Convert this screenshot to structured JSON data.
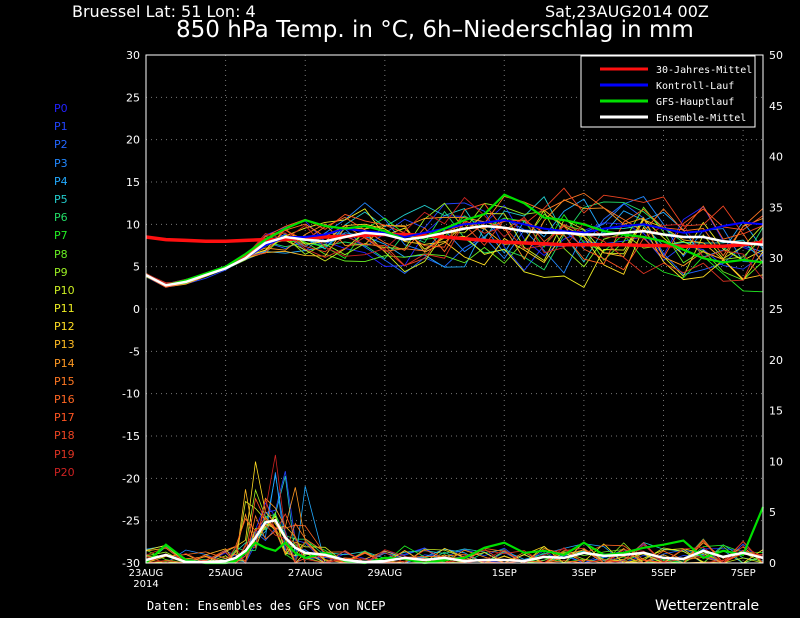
{
  "header": {
    "location": "Bruessel  Lat: 51 Lon: 4",
    "run": "Sat,23AUG2014 00Z",
    "title": "850 hPa Temp. in °C, 6h–Niederschlag in mm"
  },
  "footer": {
    "credit": "Daten: Ensembles des GFS von NCEP",
    "brand": "Wetterzentrale"
  },
  "members": [
    "P0",
    "P1",
    "P2",
    "P3",
    "P4",
    "P5",
    "P6",
    "P7",
    "P8",
    "P9",
    "P10",
    "P11",
    "P12",
    "P13",
    "P14",
    "P15",
    "P16",
    "P17",
    "P18",
    "P19",
    "P20"
  ],
  "member_colors": [
    "#2222ff",
    "#2244ff",
    "#2266ff",
    "#2288ff",
    "#22aaff",
    "#22cccc",
    "#22dd66",
    "#22ee22",
    "#66ee22",
    "#99ee22",
    "#ccee22",
    "#eeee22",
    "#ffdd22",
    "#ffbb22",
    "#ff9922",
    "#ff7722",
    "#ff6622",
    "#ff5522",
    "#ee4422",
    "#dd3322",
    "#cc2222"
  ],
  "colors": {
    "clim": "#ff1010",
    "control": "#0000ff",
    "gfs": "#00e000",
    "mean": "#ffffff"
  },
  "chart_data": {
    "type": "line",
    "left_axis": {
      "min": -30,
      "max": 30,
      "ticks": [
        30,
        25,
        20,
        15,
        10,
        5,
        0,
        -5,
        -10,
        -15,
        -20,
        -25,
        -30
      ]
    },
    "right_axis": {
      "min": 0,
      "max": 50,
      "ticks": [
        50,
        45,
        40,
        35,
        30,
        25,
        20,
        15,
        10,
        5,
        0
      ]
    },
    "x_labels": [
      "23AUG",
      "25AUG",
      "27AUG",
      "29AUG",
      "1SEP",
      "3SEP",
      "5SEP",
      "7SEP"
    ],
    "x_label_days": [
      0,
      2,
      4,
      6,
      9,
      11,
      13,
      15
    ],
    "x_sublabel": "2014",
    "x_range_days": [
      0,
      15.5
    ],
    "grid": true,
    "legend_position": "top-right",
    "legend": [
      "30-Jahres-Mittel",
      "Kontroll-Lauf",
      "GFS-Hauptlauf",
      "Ensemble-Mittel"
    ],
    "temp_days": [
      0,
      0.5,
      1,
      1.5,
      2,
      2.5,
      3,
      3.5,
      4,
      4.5,
      5,
      5.5,
      6,
      6.5,
      7,
      7.5,
      8,
      8.5,
      9,
      9.5,
      10,
      10.5,
      11,
      11.5,
      12,
      12.5,
      13,
      13.5,
      14,
      14.5,
      15,
      15.5
    ],
    "series": [
      {
        "name": "30-Jahres-Mittel",
        "unit": "°C",
        "values": [
          8.5,
          8.2,
          8.1,
          8.0,
          8.0,
          8.1,
          8.2,
          8.2,
          8.4,
          8.5,
          8.6,
          8.7,
          8.8,
          8.8,
          8.7,
          8.5,
          8.3,
          8.1,
          7.9,
          7.8,
          7.7,
          7.6,
          7.6,
          7.6,
          7.6,
          7.5,
          7.5,
          7.4,
          7.4,
          7.4,
          7.6,
          7.9
        ]
      },
      {
        "name": "Ensemble-Mittel",
        "unit": "°C",
        "values": [
          4.0,
          2.8,
          3.2,
          4.0,
          4.8,
          6.0,
          7.8,
          8.5,
          8.2,
          8.0,
          8.5,
          9.0,
          8.8,
          8.2,
          8.5,
          9.0,
          9.5,
          9.8,
          9.6,
          9.2,
          9.0,
          9.0,
          8.8,
          8.8,
          9.0,
          9.2,
          8.8,
          8.5,
          8.5,
          8.0,
          7.8,
          7.6
        ]
      },
      {
        "name": "GFS-Hauptlauf",
        "unit": "°C",
        "values": [
          4.0,
          2.8,
          3.4,
          4.2,
          5.0,
          6.5,
          8.2,
          9.5,
          10.5,
          9.8,
          9.5,
          9.8,
          9.2,
          8.2,
          8.5,
          9.5,
          10.5,
          11.2,
          13.5,
          12.5,
          10.8,
          10.5,
          10.0,
          9.2,
          8.8,
          8.5,
          8.0,
          7.0,
          6.0,
          5.5,
          5.8,
          5.5
        ]
      },
      {
        "name": "Kontroll-Lauf",
        "unit": "°C",
        "values": [
          4.0,
          2.8,
          3.3,
          4.0,
          4.8,
          6.0,
          7.5,
          8.5,
          8.5,
          8.8,
          9.5,
          9.2,
          9.0,
          8.5,
          9.0,
          9.5,
          10.0,
          10.2,
          10.5,
          10.0,
          9.5,
          9.2,
          9.0,
          9.5,
          9.8,
          10.0,
          9.5,
          9.0,
          9.2,
          9.8,
          10.2,
          10.0
        ]
      },
      {
        "name": "Ensemble-Mittel Niederschlag",
        "unit": "mm",
        "precip_days": [
          0,
          0.5,
          1,
          1.5,
          2,
          2.25,
          2.5,
          2.75,
          3,
          3.25,
          3.5,
          3.75,
          4,
          4.5,
          5,
          5.5,
          6,
          6.5,
          7,
          7.5,
          8,
          8.5,
          9,
          9.5,
          10,
          10.5,
          11,
          11.5,
          12,
          12.5,
          13,
          13.5,
          14,
          14.5,
          15,
          15.5
        ],
        "values": [
          0.3,
          0.8,
          0.1,
          0.1,
          0.2,
          0.5,
          1.2,
          2.5,
          4.0,
          4.2,
          2.5,
          1.5,
          1.0,
          0.8,
          0.3,
          0.1,
          0.2,
          0.5,
          0.3,
          0.5,
          0.2,
          0.3,
          0.3,
          0.2,
          0.6,
          0.5,
          1.0,
          0.7,
          0.8,
          1.0,
          0.5,
          0.4,
          1.2,
          0.6,
          1.0,
          0.5
        ]
      },
      {
        "name": "GFS-Hauptlauf Niederschlag",
        "unit": "mm",
        "precip_days": [
          0,
          0.5,
          1,
          1.5,
          2,
          2.25,
          2.5,
          2.75,
          3,
          3.25,
          3.5,
          3.75,
          4,
          4.5,
          5,
          5.5,
          6,
          6.5,
          7,
          7.5,
          8,
          8.5,
          9,
          9.5,
          10,
          10.5,
          11,
          11.5,
          12,
          12.5,
          13,
          13.5,
          14,
          14.5,
          15,
          15.5
        ],
        "values": [
          0.0,
          1.8,
          0.3,
          0.0,
          0.0,
          0.2,
          1.0,
          2.0,
          1.5,
          1.2,
          2.0,
          1.0,
          0.5,
          1.0,
          0.2,
          0.0,
          0.5,
          0.4,
          0.0,
          0.3,
          0.5,
          1.5,
          2.0,
          1.0,
          1.2,
          0.8,
          2.0,
          0.8,
          1.0,
          1.5,
          1.8,
          2.2,
          0.5,
          1.2,
          0.8,
          5.5
        ]
      }
    ]
  }
}
